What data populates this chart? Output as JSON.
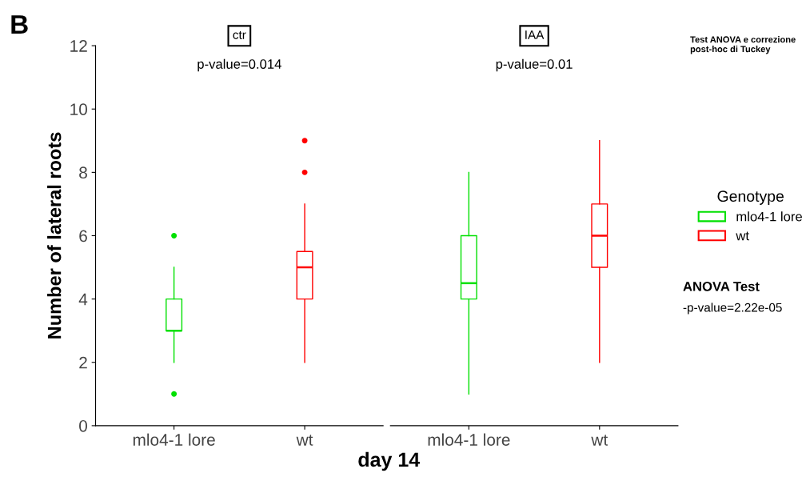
{
  "chart_data": [
    {
      "type": "box",
      "title": "ctr",
      "xlabel": "day 14",
      "ylabel": "Number of lateral roots",
      "categories": [
        "mlo4-1 lore",
        "wt"
      ],
      "ylim": [
        0,
        12
      ],
      "yticks": [
        0,
        2,
        4,
        6,
        8,
        10,
        12
      ],
      "grid": false,
      "legend": false,
      "annotations": [
        "B",
        "p-value=0.014"
      ],
      "series": [
        {
          "color": "#00e000",
          "boxes": [
            {
              "low": 2,
              "q1": 3,
              "median": 3,
              "q3": 4,
              "high": 5,
              "outliers": [
                1,
                6
              ]
            },
            null
          ]
        },
        {
          "color": "#ff0000",
          "boxes": [
            null,
            {
              "low": 2,
              "q1": 4,
              "median": 5,
              "q3": 5.5,
              "high": 7,
              "outliers": [
                8,
                9
              ]
            }
          ]
        }
      ]
    },
    {
      "type": "box",
      "title": "IAA",
      "categories": [
        "mlo4-1 lore",
        "wt"
      ],
      "ylim": [
        0,
        12
      ],
      "yticks": [
        0,
        2,
        4,
        6,
        8,
        10,
        12
      ],
      "grid": false,
      "legend": "right",
      "legend_title": "Genotype",
      "tick_labels": "x",
      "annotations": [
        "p-value=0.01",
        "Test ANOVA e correzione post-hoc di Tuckey",
        "ANOVA Test",
        "-p-value=2.22e-05"
      ],
      "series": [
        {
          "name": "mlo4-1 lore",
          "color": "#00e000",
          "boxes": [
            {
              "low": 1,
              "q1": 4,
              "median": 4.5,
              "q3": 6,
              "high": 8
            },
            null
          ]
        },
        {
          "name": "wt",
          "color": "#ff0000",
          "boxes": [
            null,
            {
              "low": 2,
              "q1": 5,
              "median": 6,
              "q3": 7,
              "high": 9
            }
          ]
        }
      ]
    }
  ]
}
